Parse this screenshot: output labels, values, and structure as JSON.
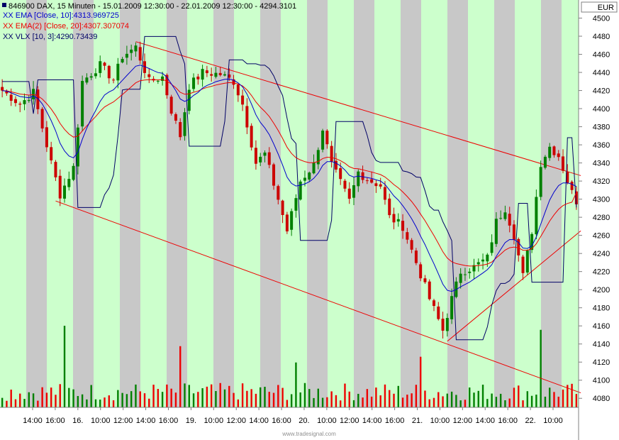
{
  "header": {
    "line1": "846900  DAX, 15 Minuten - 15.01.2009 12:30:00 - 22.01.2009 12:30:00 - 4294.3101",
    "line2": "XX EMA [Close, 10]:4313.969725",
    "line3": "XX EMA(2) [Close, 20]:4307.307074",
    "line4": "XX VLX [10, 3]:4290.73439"
  },
  "currency": "EUR",
  "watermark": "www.tradesignal.com",
  "colors": {
    "background": "#ffffff",
    "band_green": "#ccffcc",
    "band_gray": "#c8c8c8",
    "up_candle": "#008000",
    "down_candle": "#cc0000",
    "ema10": "#0000cc",
    "ema20": "#ee0000",
    "vlx": "#000066",
    "trend_line": "#ee0000",
    "volume_up": "#008000",
    "volume_down": "#ee0000"
  },
  "chart_data": {
    "type": "candlestick",
    "title": "846900  DAX, 15 Minuten - 15.01.2009 12:30:00 - 22.01.2009 12:30:00 - 4294.3101",
    "ylabel": "EUR",
    "ylim": [
      4070,
      4520
    ],
    "y_ticks": [
      4080,
      4100,
      4120,
      4140,
      4160,
      4180,
      4200,
      4220,
      4240,
      4260,
      4280,
      4300,
      4320,
      4340,
      4360,
      4380,
      4400,
      4420,
      4440,
      4460,
      4480,
      4500
    ],
    "x_tick_labels": [
      "14:00",
      "16:00",
      "16.",
      "10:00",
      "12:00",
      "14:00",
      "16:00",
      "19.",
      "10:00",
      "12:00",
      "14:00",
      "16:00",
      "20.",
      "10:00",
      "12:00",
      "14:00",
      "16:00",
      "21.",
      "10:00",
      "12:00",
      "14:00",
      "16:00",
      "22.",
      "10:00"
    ],
    "grid": false,
    "legend": "top-left",
    "bar_count": 130,
    "close_anchors": [
      {
        "bar": 0,
        "close": 4420
      },
      {
        "bar": 4,
        "close": 4405
      },
      {
        "bar": 7,
        "close": 4418
      },
      {
        "bar": 11,
        "close": 4340
      },
      {
        "bar": 13,
        "close": 4305
      },
      {
        "bar": 16,
        "close": 4335
      },
      {
        "bar": 18,
        "close": 4430
      },
      {
        "bar": 22,
        "close": 4448
      },
      {
        "bar": 25,
        "close": 4432
      },
      {
        "bar": 27,
        "close": 4458
      },
      {
        "bar": 30,
        "close": 4468
      },
      {
        "bar": 33,
        "close": 4430
      },
      {
        "bar": 36,
        "close": 4435
      },
      {
        "bar": 38,
        "close": 4398
      },
      {
        "bar": 40,
        "close": 4370
      },
      {
        "bar": 42,
        "close": 4425
      },
      {
        "bar": 45,
        "close": 4440
      },
      {
        "bar": 49,
        "close": 4438
      },
      {
        "bar": 52,
        "close": 4430
      },
      {
        "bar": 54,
        "close": 4405
      },
      {
        "bar": 57,
        "close": 4340
      },
      {
        "bar": 59,
        "close": 4350
      },
      {
        "bar": 62,
        "close": 4300
      },
      {
        "bar": 64,
        "close": 4265
      },
      {
        "bar": 67,
        "close": 4320
      },
      {
        "bar": 70,
        "close": 4338
      },
      {
        "bar": 72,
        "close": 4378
      },
      {
        "bar": 74,
        "close": 4338
      },
      {
        "bar": 76,
        "close": 4318
      },
      {
        "bar": 78,
        "close": 4298
      },
      {
        "bar": 80,
        "close": 4330
      },
      {
        "bar": 82,
        "close": 4322
      },
      {
        "bar": 85,
        "close": 4315
      },
      {
        "bar": 87,
        "close": 4280
      },
      {
        "bar": 90,
        "close": 4270
      },
      {
        "bar": 93,
        "close": 4230
      },
      {
        "bar": 96,
        "close": 4190
      },
      {
        "bar": 99,
        "close": 4155
      },
      {
        "bar": 101,
        "close": 4190
      },
      {
        "bar": 103,
        "close": 4220
      },
      {
        "bar": 106,
        "close": 4225
      },
      {
        "bar": 109,
        "close": 4235
      },
      {
        "bar": 111,
        "close": 4275
      },
      {
        "bar": 113,
        "close": 4290
      },
      {
        "bar": 115,
        "close": 4260
      },
      {
        "bar": 117,
        "close": 4215
      },
      {
        "bar": 119,
        "close": 4265
      },
      {
        "bar": 121,
        "close": 4340
      },
      {
        "bar": 123,
        "close": 4358
      },
      {
        "bar": 125,
        "close": 4348
      },
      {
        "bar": 127,
        "close": 4320
      },
      {
        "bar": 129,
        "close": 4294.3
      }
    ],
    "volume_spikes": [
      {
        "bar": 14,
        "volume": 1.0
      },
      {
        "bar": 40,
        "volume": 0.75
      },
      {
        "bar": 66,
        "volume": 0.55
      },
      {
        "bar": 94,
        "volume": 0.62
      },
      {
        "bar": 121,
        "volume": 0.95
      }
    ],
    "trend_lines": [
      {
        "from": {
          "bar": 30,
          "price": 4474
        },
        "to": {
          "bar": 130,
          "price": 4326
        }
      },
      {
        "from": {
          "bar": 12,
          "price": 4298
        },
        "to": {
          "bar": 130,
          "price": 4086
        }
      },
      {
        "from": {
          "bar": 100,
          "price": 4143
        },
        "to": {
          "bar": 130,
          "price": 4265
        }
      }
    ],
    "indicators": [
      {
        "name": "XX EMA [Close, 10]",
        "last": 4313.969725
      },
      {
        "name": "XX EMA(2) [Close, 20]",
        "last": 4307.307074
      },
      {
        "name": "XX VLX [10, 3]",
        "last": 4290.73439
      }
    ],
    "last_close": 4294.3101
  }
}
